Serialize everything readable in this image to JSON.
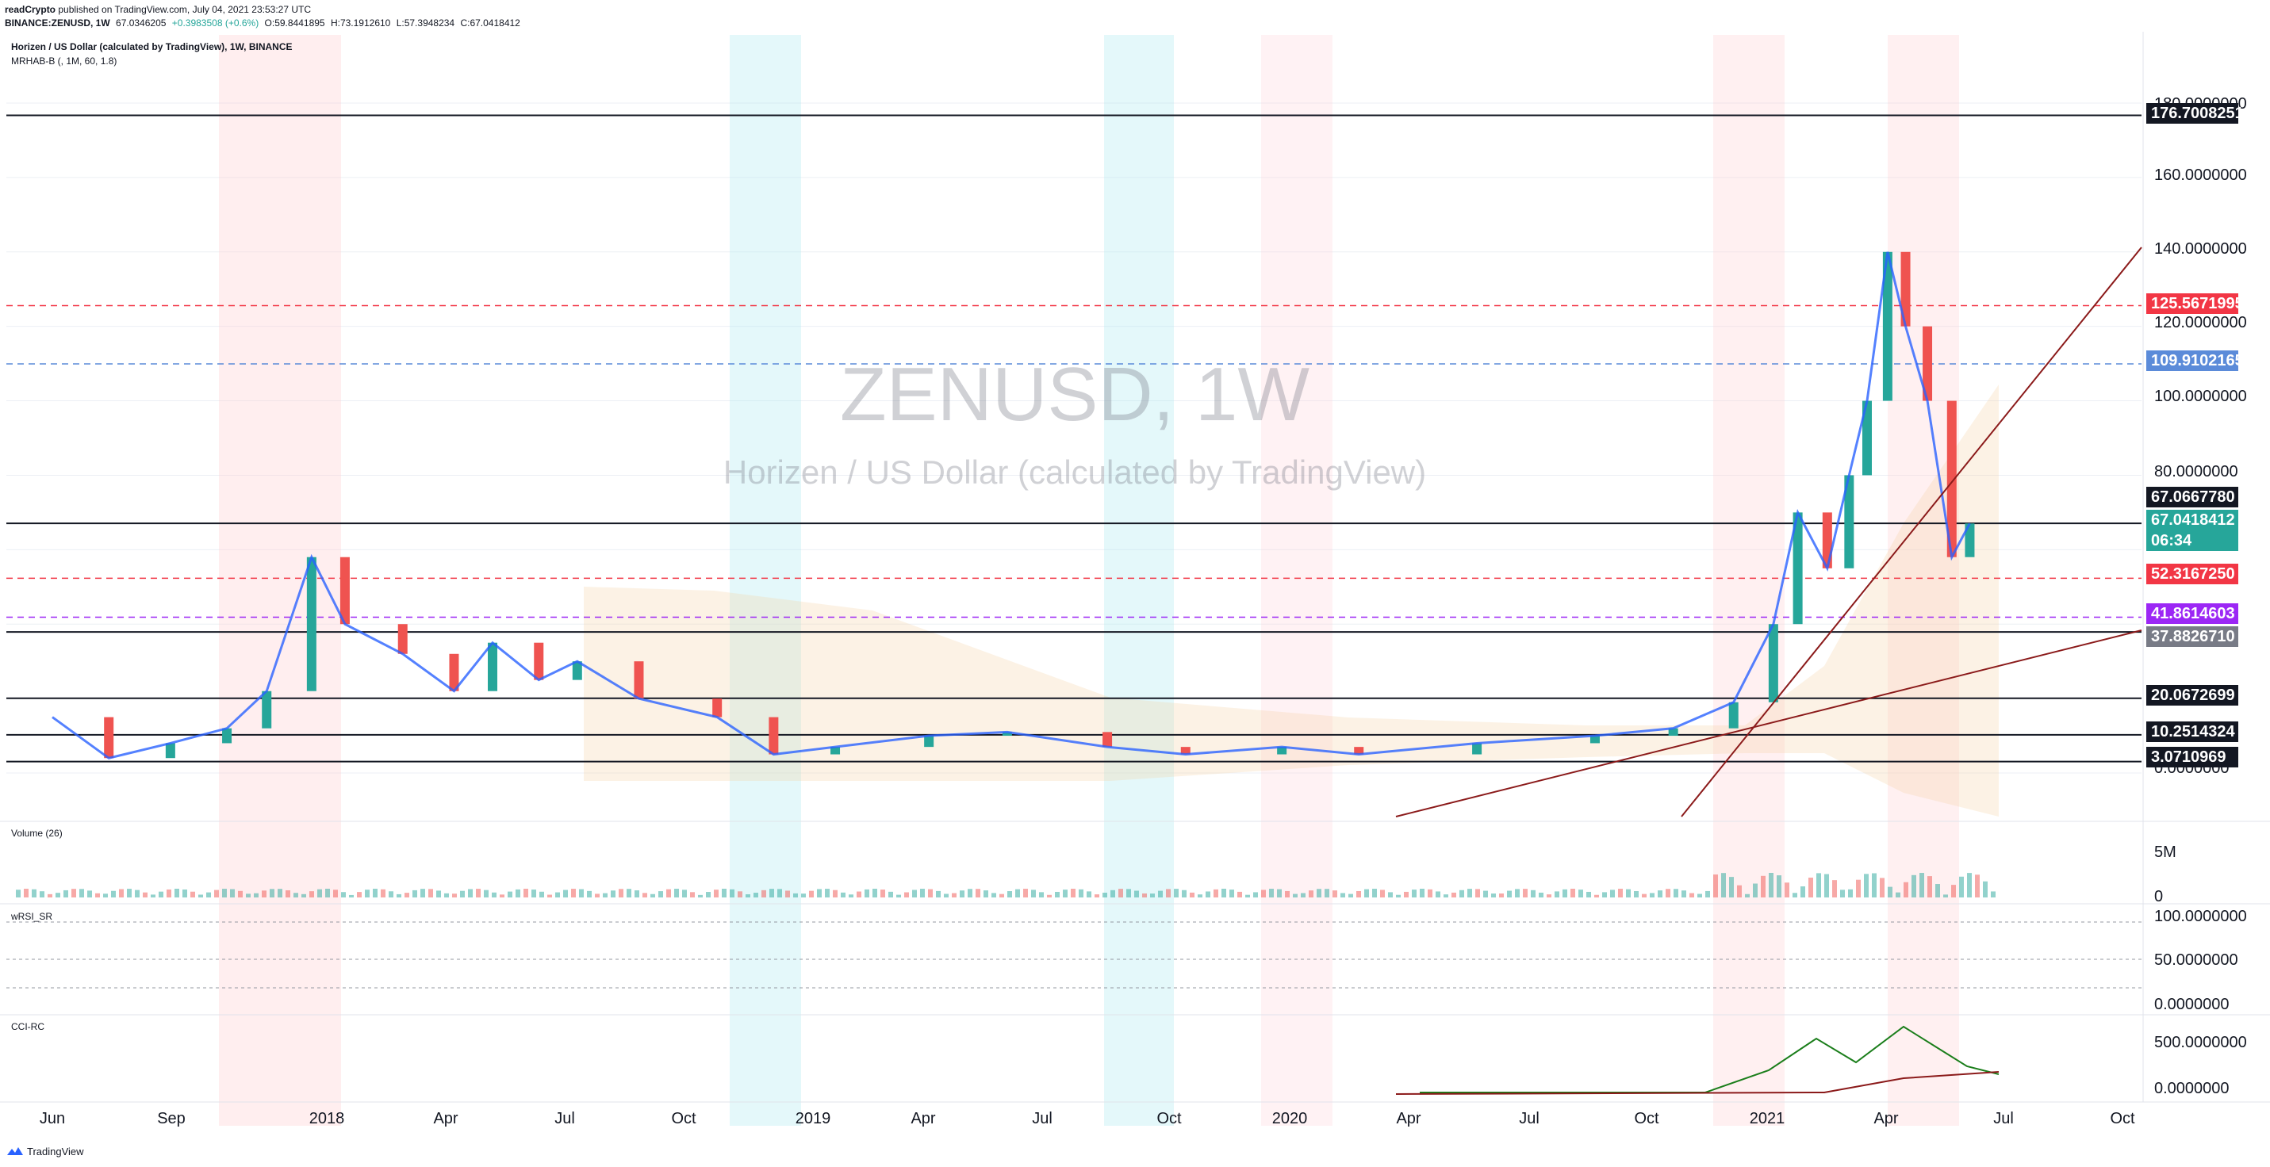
{
  "header": {
    "publisher": "readCrypto",
    "published_line": " published on TradingView.com, July 04, 2021 23:53:27 UTC",
    "symbol_line": "BINANCE:ZENUSD, 1W",
    "last": "67.0346205",
    "change": "+0.3983508 (+0.6%)",
    "open": "O:59.8441895",
    "high": "H:73.1912610",
    "low": "L:57.3948234",
    "close": "C:67.0418412"
  },
  "legend": {
    "title": "Horizen / US Dollar (calculated by TradingView), 1W, BINANCE",
    "indicator": "MRHAB-B (, 1M, 60, 1.8)"
  },
  "watermark": {
    "symbol": "ZENUSD, 1W",
    "name": "Horizen / US Dollar (calculated by TradingView)"
  },
  "panes": {
    "volume_label": "Volume (26)",
    "rsi_label": "wRSI_SR",
    "cci_label": "CCI-RC"
  },
  "price_badges": [
    {
      "text": "176.7008251",
      "color": "#131722",
      "value": 176.7008251
    },
    {
      "text": "125.5671995",
      "color": "#f23645",
      "value": 125.5671995
    },
    {
      "text": "109.9102165",
      "color": "#5b8bd9",
      "value": 109.9102165
    },
    {
      "text": "67.0667780",
      "color": "#131722",
      "value": 67.066778
    },
    {
      "text": "67.0418412",
      "color": "#26a69a",
      "value": 67.0418412
    },
    {
      "text": "06:34",
      "color": "#26a69a",
      "value": null
    },
    {
      "text": "52.3167250",
      "color": "#f23645",
      "value": 52.316725
    },
    {
      "text": "41.8614603",
      "color": "#9c27f5",
      "value": 41.8614603
    },
    {
      "text": "37.8826710",
      "color": "#787b86",
      "value": 37.882671
    },
    {
      "text": "20.0672699",
      "color": "#131722",
      "value": 20.0672699
    },
    {
      "text": "10.2514324",
      "color": "#131722",
      "value": 10.2514324
    },
    {
      "text": "3.0710969",
      "color": "#131722",
      "value": 3.0710969
    }
  ],
  "y_ticks": [
    "180.0000000",
    "160.0000000",
    "140.0000000",
    "120.0000000",
    "100.0000000",
    "80.0000000",
    "0.0000000"
  ],
  "volume_ticks": [
    "5M",
    "0"
  ],
  "rsi_ticks": [
    "100.0000000",
    "50.0000000",
    "0.0000000"
  ],
  "cci_ticks": [
    "500.0000000",
    "0.0000000"
  ],
  "x_ticks": [
    "Jun",
    "Sep",
    "2018",
    "Apr",
    "Jul",
    "Oct",
    "2019",
    "Apr",
    "Jul",
    "Oct",
    "2020",
    "Apr",
    "Jul",
    "Oct",
    "2021",
    "Apr",
    "Jul",
    "Oct"
  ],
  "footer": {
    "brand": "TradingView"
  },
  "colors": {
    "up": "#26a69a",
    "down": "#ef5350",
    "grid": "#eceff4"
  },
  "chart_data": {
    "type": "candlestick",
    "title": "ZENUSD, 1W",
    "subtitle": "Horizen / US Dollar (calculated by TradingView)",
    "ylim": [
      -10,
      190
    ],
    "x_range": [
      "2017-06",
      "2021-10"
    ],
    "grid": true,
    "closes_approx": [
      {
        "date": "2017-06-01",
        "close": 15
      },
      {
        "date": "2017-07-15",
        "close": 4
      },
      {
        "date": "2017-09-01",
        "close": 8
      },
      {
        "date": "2017-10-15",
        "close": 12
      },
      {
        "date": "2017-11-15",
        "close": 22
      },
      {
        "date": "2017-12-20",
        "close": 58
      },
      {
        "date": "2018-01-15",
        "close": 40
      },
      {
        "date": "2018-03-01",
        "close": 32
      },
      {
        "date": "2018-04-10",
        "close": 22
      },
      {
        "date": "2018-05-10",
        "close": 35
      },
      {
        "date": "2018-06-15",
        "close": 25
      },
      {
        "date": "2018-07-15",
        "close": 30
      },
      {
        "date": "2018-09-01",
        "close": 20
      },
      {
        "date": "2018-11-01",
        "close": 15
      },
      {
        "date": "2018-12-15",
        "close": 5
      },
      {
        "date": "2019-02-01",
        "close": 7
      },
      {
        "date": "2019-04-15",
        "close": 10
      },
      {
        "date": "2019-06-15",
        "close": 11
      },
      {
        "date": "2019-09-01",
        "close": 7
      },
      {
        "date": "2019-11-01",
        "close": 5
      },
      {
        "date": "2020-01-15",
        "close": 7
      },
      {
        "date": "2020-03-15",
        "close": 5
      },
      {
        "date": "2020-06-15",
        "close": 8
      },
      {
        "date": "2020-09-15",
        "close": 10
      },
      {
        "date": "2020-11-15",
        "close": 12
      },
      {
        "date": "2021-01-01",
        "close": 19
      },
      {
        "date": "2021-02-01",
        "close": 40
      },
      {
        "date": "2021-02-20",
        "close": 70
      },
      {
        "date": "2021-03-15",
        "close": 55
      },
      {
        "date": "2021-04-01",
        "close": 80
      },
      {
        "date": "2021-04-15",
        "close": 100
      },
      {
        "date": "2021-05-01",
        "close": 140
      },
      {
        "date": "2021-05-15",
        "close": 120
      },
      {
        "date": "2021-06-01",
        "close": 100
      },
      {
        "date": "2021-06-20",
        "close": 58
      },
      {
        "date": "2021-07-04",
        "close": 67.04
      }
    ],
    "horizontal_levels": [
      176.7008251,
      125.5671995,
      109.9102165,
      67.066778,
      52.316725,
      41.8614603,
      37.882671,
      20.0672699,
      10.2514324,
      3.0710969
    ]
  }
}
